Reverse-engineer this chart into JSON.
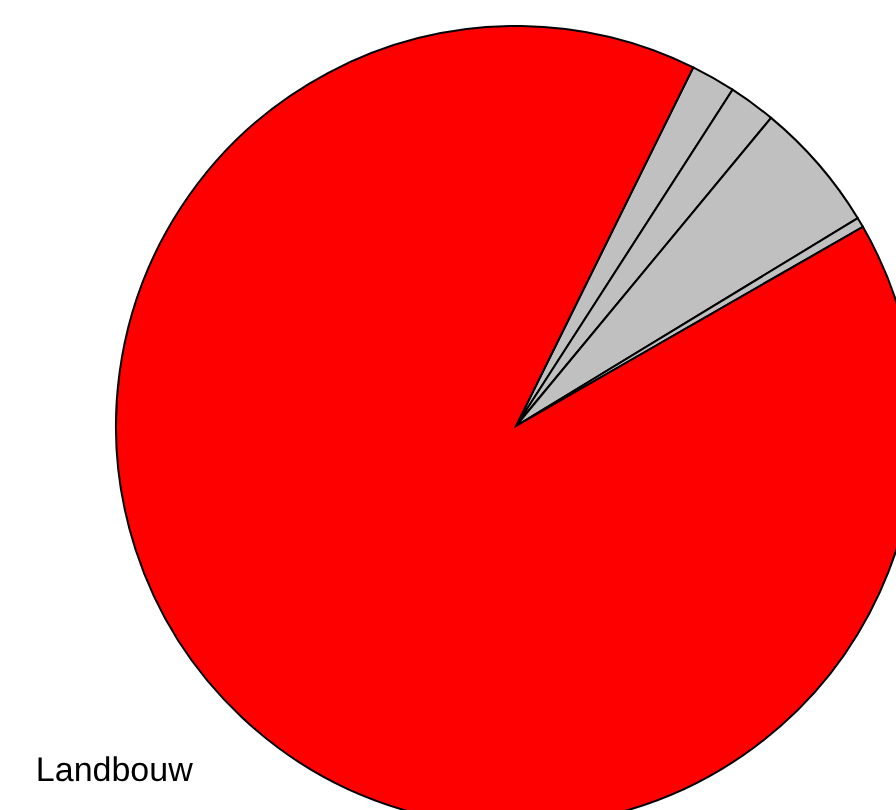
{
  "chart_data": {
    "type": "pie",
    "categories": [
      null,
      null,
      null,
      null,
      "Landbouw"
    ],
    "values": [
      1.8,
      1.9,
      5.3,
      0.4,
      90.6
    ],
    "colors": [
      "#c0c0c0",
      "#c0c0c0",
      "#c0c0c0",
      "#c0c0c0",
      "#ff0000"
    ]
  }
}
